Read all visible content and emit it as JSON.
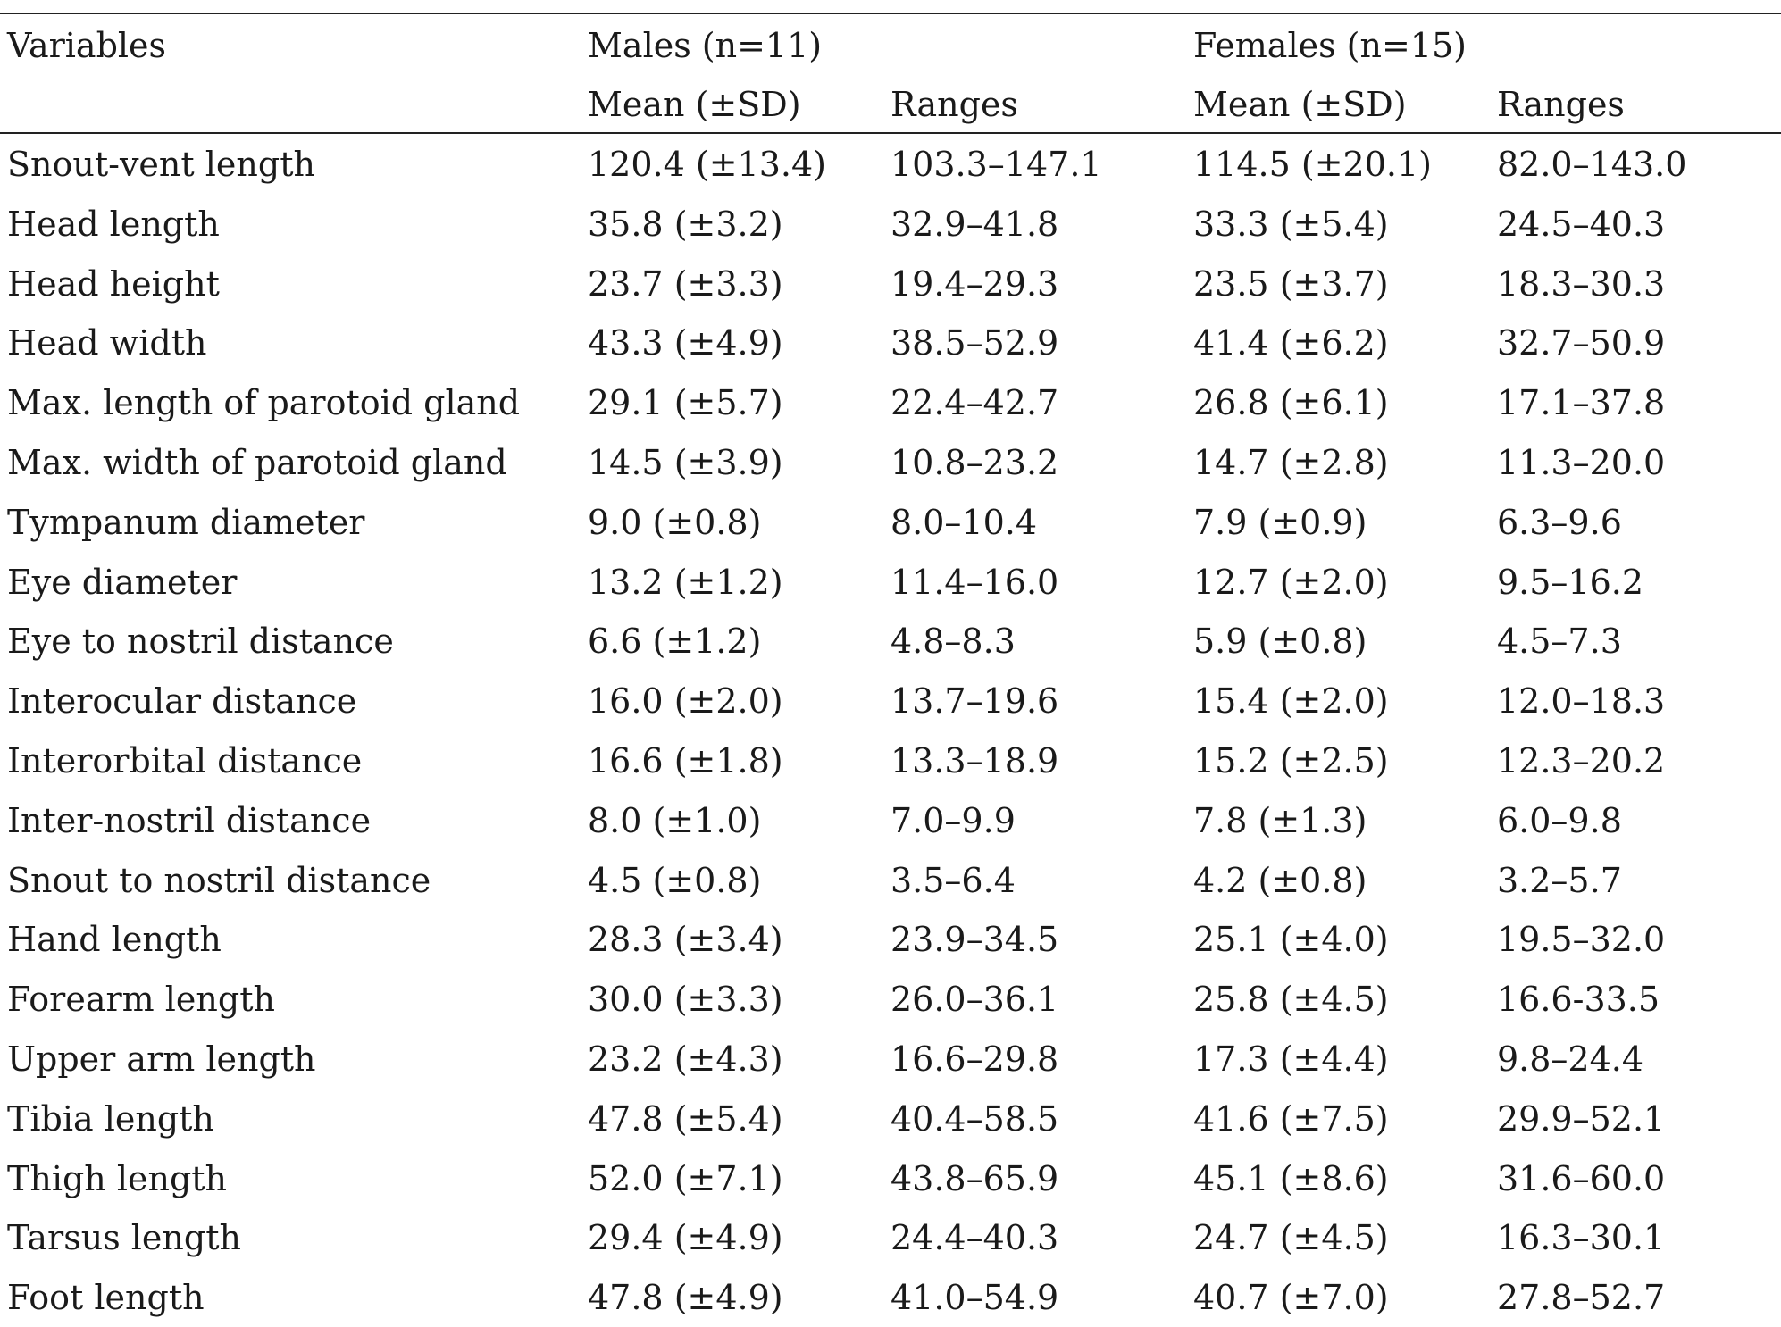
{
  "table": {
    "header": {
      "variables_label": "Variables",
      "males_label": "Males (n=11)",
      "females_label": "Females (n=15)",
      "mean_label": "Mean (±SD)",
      "ranges_label": "Ranges"
    },
    "rows": [
      {
        "variable": "Snout-vent length",
        "male_mean": "120.4 (±13.4)",
        "male_range": "103.3–147.1",
        "female_mean": "114.5 (±20.1)",
        "female_range": "82.0–143.0"
      },
      {
        "variable": "Head length",
        "male_mean": "35.8 (±3.2)",
        "male_range": "32.9–41.8",
        "female_mean": "33.3 (±5.4)",
        "female_range": "24.5–40.3"
      },
      {
        "variable": "Head height",
        "male_mean": "23.7 (±3.3)",
        "male_range": "19.4–29.3",
        "female_mean": "23.5 (±3.7)",
        "female_range": "18.3–30.3"
      },
      {
        "variable": "Head width",
        "male_mean": "43.3 (±4.9)",
        "male_range": "38.5–52.9",
        "female_mean": "41.4 (±6.2)",
        "female_range": "32.7–50.9"
      },
      {
        "variable": "Max. length of parotoid gland",
        "male_mean": "29.1 (±5.7)",
        "male_range": "22.4–42.7",
        "female_mean": "26.8 (±6.1)",
        "female_range": "17.1–37.8"
      },
      {
        "variable": "Max. width of parotoid gland",
        "male_mean": "14.5 (±3.9)",
        "male_range": "10.8–23.2",
        "female_mean": "14.7 (±2.8)",
        "female_range": "11.3–20.0"
      },
      {
        "variable": "Tympanum diameter",
        "male_mean": "9.0 (±0.8)",
        "male_range": "8.0–10.4",
        "female_mean": "7.9 (±0.9)",
        "female_range": "6.3–9.6"
      },
      {
        "variable": "Eye diameter",
        "male_mean": "13.2 (±1.2)",
        "male_range": "11.4–16.0",
        "female_mean": "12.7 (±2.0)",
        "female_range": "9.5–16.2"
      },
      {
        "variable": "Eye to nostril distance",
        "male_mean": "6.6 (±1.2)",
        "male_range": "4.8–8.3",
        "female_mean": "5.9 (±0.8)",
        "female_range": "4.5–7.3"
      },
      {
        "variable": "Interocular distance",
        "male_mean": "16.0 (±2.0)",
        "male_range": "13.7–19.6",
        "female_mean": "15.4 (±2.0)",
        "female_range": "12.0–18.3"
      },
      {
        "variable": "Interorbital distance",
        "male_mean": "16.6 (±1.8)",
        "male_range": "13.3–18.9",
        "female_mean": "15.2 (±2.5)",
        "female_range": "12.3–20.2"
      },
      {
        "variable": "Inter-nostril distance",
        "male_mean": "8.0 (±1.0)",
        "male_range": "7.0–9.9",
        "female_mean": "7.8 (±1.3)",
        "female_range": "6.0–9.8"
      },
      {
        "variable": "Snout to nostril distance",
        "male_mean": "4.5 (±0.8)",
        "male_range": "3.5–6.4",
        "female_mean": "4.2 (±0.8)",
        "female_range": "3.2–5.7"
      },
      {
        "variable": "Hand length",
        "male_mean": "28.3 (±3.4)",
        "male_range": "23.9–34.5",
        "female_mean": "25.1 (±4.0)",
        "female_range": "19.5–32.0"
      },
      {
        "variable": "Forearm length",
        "male_mean": "30.0 (±3.3)",
        "male_range": "26.0–36.1",
        "female_mean": "25.8 (±4.5)",
        "female_range": "16.6-33.5"
      },
      {
        "variable": "Upper arm length",
        "male_mean": "23.2 (±4.3)",
        "male_range": "16.6–29.8",
        "female_mean": "17.3 (±4.4)",
        "female_range": "9.8–24.4"
      },
      {
        "variable": "Tibia length",
        "male_mean": "47.8 (±5.4)",
        "male_range": "40.4–58.5",
        "female_mean": "41.6 (±7.5)",
        "female_range": "29.9–52.1"
      },
      {
        "variable": "Thigh length",
        "male_mean": "52.0 (±7.1)",
        "male_range": "43.8–65.9",
        "female_mean": "45.1 (±8.6)",
        "female_range": "31.6–60.0"
      },
      {
        "variable": "Tarsus length",
        "male_mean": "29.4 (±4.9)",
        "male_range": "24.4–40.3",
        "female_mean": "24.7 (±4.5)",
        "female_range": "16.3–30.1"
      },
      {
        "variable": "Foot length",
        "male_mean": "47.8 (±4.9)",
        "male_range": "41.0–54.9",
        "female_mean": "40.7 (±7.0)",
        "female_range": "27.8–52.7"
      }
    ]
  }
}
